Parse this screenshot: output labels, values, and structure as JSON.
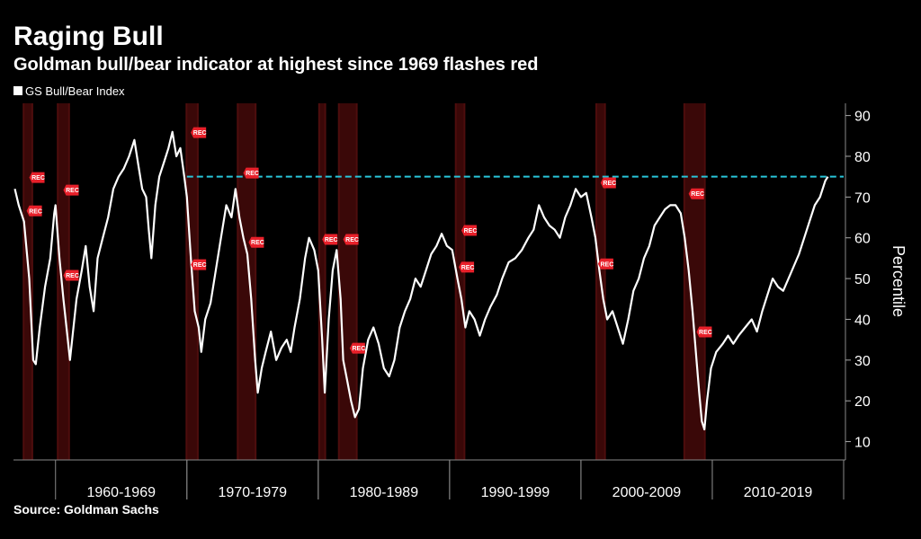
{
  "chart_data": {
    "type": "line",
    "title": "Raging Bull",
    "subtitle": "Goldman bull/bear indicator at highest since 1969 flashes red",
    "source": "Source: Goldman Sachs",
    "y_label": "Percentile",
    "xlim": [
      1956.8,
      2020
    ],
    "ylim": [
      5.5,
      93
    ],
    "yticks": [
      10,
      20,
      30,
      40,
      50,
      60,
      70,
      80,
      90
    ],
    "decades": [
      {
        "label": "1960-1969",
        "start": 1960,
        "end": 1970
      },
      {
        "label": "1970-1979",
        "start": 1970,
        "end": 1980
      },
      {
        "label": "1980-1989",
        "start": 1980,
        "end": 1990
      },
      {
        "label": "1990-1999",
        "start": 1990,
        "end": 2000
      },
      {
        "label": "2000-2009",
        "start": 2000,
        "end": 2010
      },
      {
        "label": "2010-2019",
        "start": 2010,
        "end": 2020
      }
    ],
    "recessions": [
      {
        "start": 1957.5,
        "end": 1958.3
      },
      {
        "start": 1960.1,
        "end": 1961.1
      },
      {
        "start": 1969.9,
        "end": 1970.9
      },
      {
        "start": 1973.8,
        "end": 1975.3
      },
      {
        "start": 1980.0,
        "end": 1980.6
      },
      {
        "start": 1981.5,
        "end": 1983.0
      },
      {
        "start": 1990.4,
        "end": 1991.2
      },
      {
        "start": 2001.1,
        "end": 2001.9
      },
      {
        "start": 2007.8,
        "end": 2009.5
      }
    ],
    "markers": [
      {
        "label": "REC",
        "x": 1958.0,
        "y": 74.8
      },
      {
        "label": "REC",
        "x": 1957.8,
        "y": 66.6
      },
      {
        "label": "REC",
        "x": 1960.6,
        "y": 71.7
      },
      {
        "label": "REC",
        "x": 1960.6,
        "y": 50.8
      },
      {
        "label": "REC",
        "x": 1970.3,
        "y": 85.8
      },
      {
        "label": "REC",
        "x": 1970.3,
        "y": 53.4
      },
      {
        "label": "REC",
        "x": 1974.3,
        "y": 75.9
      },
      {
        "label": "REC",
        "x": 1974.7,
        "y": 58.9
      },
      {
        "label": "REC",
        "x": 1980.3,
        "y": 59.6
      },
      {
        "label": "REC",
        "x": 1981.9,
        "y": 59.6
      },
      {
        "label": "REC",
        "x": 1982.4,
        "y": 32.9
      },
      {
        "label": "REC",
        "x": 1990.9,
        "y": 61.8
      },
      {
        "label": "REC",
        "x": 1990.7,
        "y": 52.8
      },
      {
        "label": "REC",
        "x": 2001.5,
        "y": 73.5
      },
      {
        "label": "REC",
        "x": 2001.3,
        "y": 53.6
      },
      {
        "label": "REC",
        "x": 2008.2,
        "y": 70.8
      },
      {
        "label": "REC",
        "x": 2008.8,
        "y": 36.9
      }
    ],
    "reference": {
      "value": 75,
      "start": 1970,
      "color": "#29c5d9"
    },
    "series": [
      {
        "name": "GS Bull/Bear Index",
        "color": "#ffffff",
        "x": [
          1956.9,
          1957.2,
          1957.6,
          1958.0,
          1958.3,
          1958.5,
          1958.8,
          1959.2,
          1959.6,
          1959.9,
          1960.0,
          1960.3,
          1960.6,
          1960.9,
          1961.1,
          1961.3,
          1961.6,
          1962.0,
          1962.3,
          1962.6,
          1962.9,
          1963.2,
          1963.6,
          1964.0,
          1964.4,
          1964.8,
          1965.2,
          1965.6,
          1966.0,
          1966.3,
          1966.6,
          1966.9,
          1967.1,
          1967.3,
          1967.6,
          1967.9,
          1968.3,
          1968.6,
          1968.9,
          1969.2,
          1969.5,
          1969.8,
          1970.0,
          1970.3,
          1970.6,
          1970.9,
          1971.1,
          1971.4,
          1971.8,
          1972.2,
          1972.6,
          1973.0,
          1973.4,
          1973.7,
          1974.0,
          1974.3,
          1974.6,
          1974.9,
          1975.2,
          1975.4,
          1975.7,
          1976.0,
          1976.4,
          1976.8,
          1977.2,
          1977.6,
          1977.9,
          1978.2,
          1978.6,
          1979.0,
          1979.3,
          1979.7,
          1980.0,
          1980.3,
          1980.5,
          1980.8,
          1981.1,
          1981.4,
          1981.7,
          1981.9,
          1982.2,
          1982.5,
          1982.8,
          1983.1,
          1983.4,
          1983.8,
          1984.2,
          1984.6,
          1985.0,
          1985.4,
          1985.8,
          1986.2,
          1986.6,
          1987.0,
          1987.4,
          1987.8,
          1988.2,
          1988.6,
          1989.0,
          1989.4,
          1989.8,
          1990.2,
          1990.6,
          1990.9,
          1991.2,
          1991.5,
          1991.9,
          1992.3,
          1992.7,
          1993.1,
          1993.6,
          1994.0,
          1994.5,
          1995.0,
          1995.5,
          1996.0,
          1996.4,
          1996.8,
          1997.2,
          1997.6,
          1998.0,
          1998.4,
          1998.8,
          1999.2,
          1999.6,
          2000.0,
          2000.4,
          2000.8,
          2001.1,
          2001.4,
          2001.7,
          2002.0,
          2002.4,
          2002.8,
          2003.2,
          2003.6,
          2004.0,
          2004.4,
          2004.8,
          2005.2,
          2005.6,
          2006.0,
          2006.4,
          2006.8,
          2007.2,
          2007.6,
          2007.9,
          2008.2,
          2008.5,
          2008.8,
          2009.0,
          2009.2,
          2009.4,
          2009.6,
          2009.9,
          2010.3,
          2010.8,
          2011.2,
          2011.6,
          2012.0,
          2012.5,
          2013.0,
          2013.4,
          2013.8,
          2014.2,
          2014.6,
          2015.0,
          2015.4,
          2015.8,
          2016.2,
          2016.6,
          2017.0,
          2017.4,
          2017.8,
          2018.2,
          2018.6,
          2018.8
        ],
        "values": [
          72,
          68,
          64,
          50,
          30,
          29,
          38,
          48,
          55,
          66,
          68,
          55,
          45,
          36,
          30,
          36,
          45,
          52,
          58,
          48,
          42,
          55,
          60,
          65,
          72,
          75,
          77,
          80,
          84,
          78,
          72,
          70,
          62,
          55,
          68,
          75,
          79,
          82,
          86,
          80,
          82,
          75,
          70,
          55,
          42,
          38,
          32,
          40,
          44,
          52,
          60,
          68,
          65,
          72,
          65,
          60,
          56,
          45,
          30,
          22,
          28,
          32,
          37,
          30,
          33,
          35,
          32,
          38,
          45,
          55,
          60,
          57,
          52,
          35,
          22,
          40,
          52,
          57,
          45,
          30,
          25,
          20,
          16,
          18,
          28,
          35,
          38,
          34,
          28,
          26,
          30,
          38,
          42,
          45,
          50,
          48,
          52,
          56,
          58,
          61,
          58,
          57,
          50,
          45,
          38,
          42,
          40,
          36,
          40,
          43,
          46,
          50,
          54,
          55,
          57,
          60,
          62,
          68,
          65,
          63,
          62,
          60,
          65,
          68,
          72,
          70,
          71,
          65,
          60,
          52,
          45,
          40,
          42,
          38,
          34,
          40,
          47,
          50,
          55,
          58,
          63,
          65,
          67,
          68,
          68,
          66,
          60,
          52,
          42,
          30,
          22,
          15,
          13,
          20,
          28,
          32,
          34,
          36,
          34,
          36,
          38,
          40,
          37,
          42,
          46,
          50,
          48,
          47,
          50,
          53,
          56,
          60,
          64,
          68,
          70,
          74,
          75
        ]
      }
    ]
  }
}
